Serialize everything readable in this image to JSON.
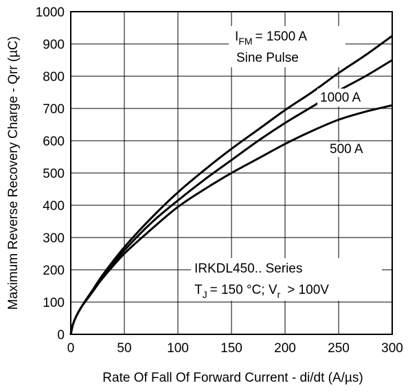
{
  "chart_data": {
    "type": "line",
    "xlabel": "Rate Of Fall Of Forward Current - di/dt (A/µs)",
    "ylabel": "Maximum Reverse Recovery Charge - Qrr (µC)",
    "xlim": [
      0,
      300
    ],
    "ylim": [
      0,
      1000
    ],
    "xticks": [
      0,
      50,
      100,
      150,
      200,
      250,
      300
    ],
    "yticks": [
      0,
      100,
      200,
      300,
      400,
      500,
      600,
      700,
      800,
      900,
      1000
    ],
    "grid": true,
    "x": [
      0,
      2,
      5,
      10,
      20,
      30,
      50,
      75,
      100,
      125,
      150,
      175,
      200,
      225,
      250,
      275,
      300
    ],
    "series": [
      {
        "name": "I_FM = 1500 A",
        "values": [
          0,
          30,
          55,
          85,
          135,
          185,
          270,
          360,
          440,
          510,
          575,
          635,
          695,
          750,
          810,
          865,
          925
        ]
      },
      {
        "name": "1000 A",
        "values": [
          0,
          30,
          55,
          85,
          135,
          180,
          260,
          345,
          415,
          480,
          540,
          600,
          655,
          705,
          755,
          800,
          850
        ]
      },
      {
        "name": "500 A",
        "values": [
          0,
          30,
          55,
          85,
          130,
          175,
          250,
          325,
          395,
          450,
          500,
          545,
          590,
          630,
          665,
          690,
          710
        ]
      }
    ],
    "annotations": {
      "ifm_main": "I",
      "ifm_sub": "FM",
      "ifm_value": "= 1500 A",
      "sine": "Sine Pulse",
      "a1000": "1000 A",
      "a500": "500 A",
      "series_name": "IRKDL450.. Series",
      "tj_main": "T",
      "tj_sub": "J",
      "tj_text": "= 150 °C; V",
      "vr_sub": "r",
      "vr_text": "> 100V"
    }
  }
}
